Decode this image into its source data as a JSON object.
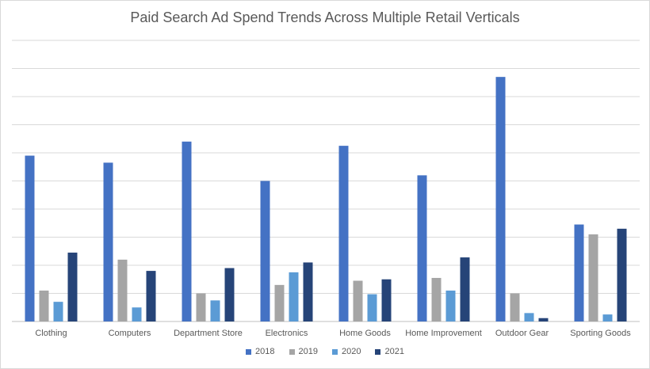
{
  "chart_data": {
    "type": "bar",
    "title": "Paid Search Ad Spend Trends Across Multiple Retail Verticals",
    "categories": [
      "Clothing",
      "Computers",
      "Department Store",
      "Electronics",
      "Home Goods",
      "Home Improvement",
      "Outdoor Gear",
      "Sporting Goods"
    ],
    "series": [
      {
        "name": "2018",
        "color": "#4472c4",
        "values": [
          5.9,
          5.65,
          6.4,
          5.0,
          6.25,
          5.2,
          8.7,
          3.45
        ]
      },
      {
        "name": "2019",
        "color": "#a5a5a5",
        "values": [
          1.1,
          2.2,
          1.0,
          1.3,
          1.45,
          1.55,
          1.0,
          3.1
        ]
      },
      {
        "name": "2020",
        "color": "#5b9bd5",
        "values": [
          0.7,
          0.5,
          0.75,
          1.75,
          0.97,
          1.1,
          0.3,
          0.25
        ]
      },
      {
        "name": "2021",
        "color": "#264478",
        "values": [
          2.45,
          1.8,
          1.9,
          2.1,
          1.5,
          2.28,
          0.12,
          3.3
        ]
      }
    ],
    "ylim": [
      0,
      10
    ],
    "y_gridlines": 10,
    "y_tick_labels_shown": false,
    "grid": true,
    "legend_position": "bottom"
  }
}
